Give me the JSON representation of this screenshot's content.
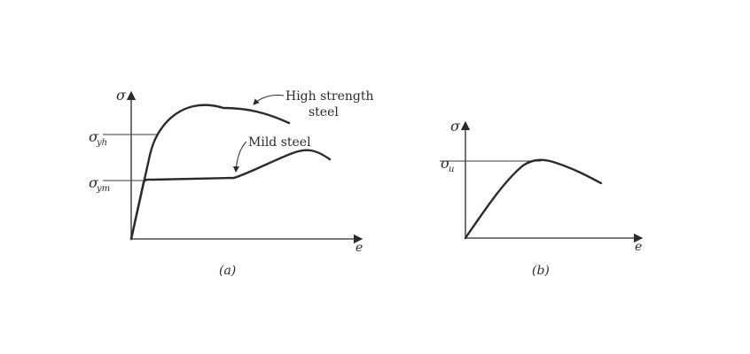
{
  "panel_a": {
    "caption": "(a)",
    "y_axis_symbol": "σ",
    "x_axis_symbol": "e",
    "yield_high": {
      "base": "σ",
      "sub": "yh"
    },
    "yield_mild": {
      "base": "σ",
      "sub": "ym"
    },
    "curve_high_label_line1": "High strength",
    "curve_high_label_line2": "steel",
    "curve_mild_label": "Mild steel"
  },
  "panel_b": {
    "caption": "(b)",
    "y_axis_symbol": "σ",
    "x_axis_symbol": "e",
    "ultimate": {
      "base": "σ",
      "sub": "u"
    }
  },
  "colors": {
    "ink": "#2b2b2b",
    "background": "#ffffff"
  }
}
